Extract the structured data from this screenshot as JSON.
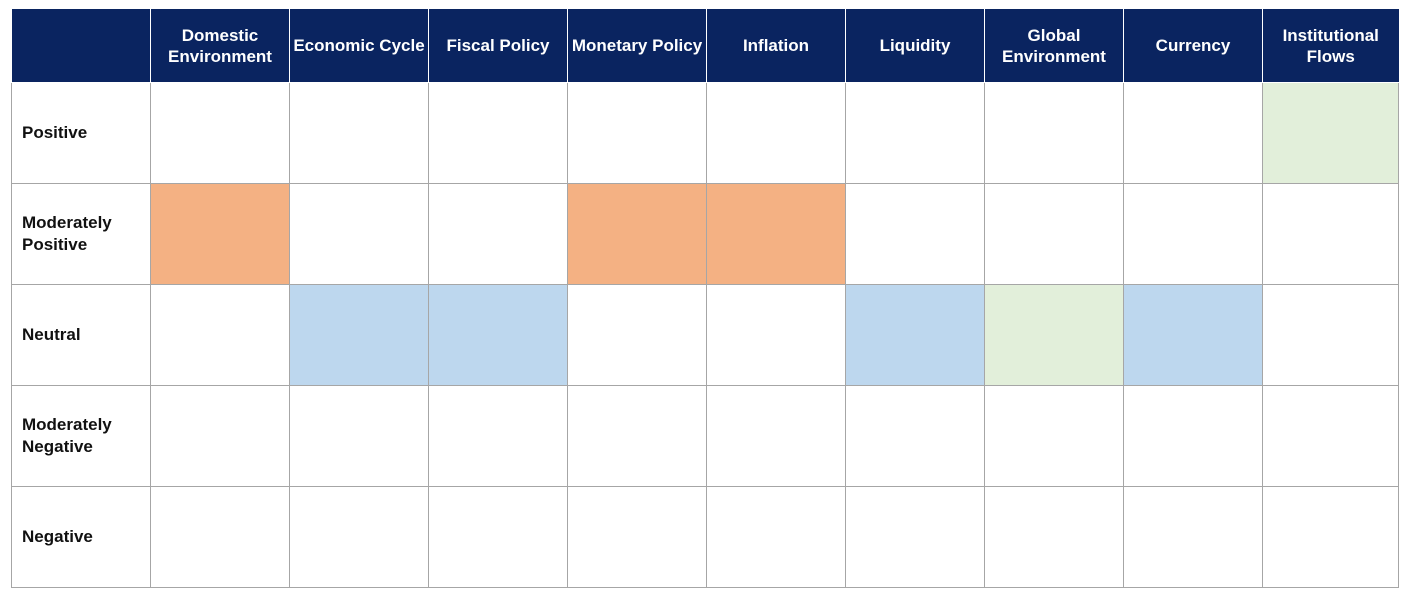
{
  "chart_data": {
    "type": "heatmap",
    "columns": [
      "Domestic Environment",
      "Economic Cycle",
      "Fiscal Policy",
      "Monetary Policy",
      "Inflation",
      "Liquidity",
      "Global Environment",
      "Currency",
      "Institutional Flows"
    ],
    "rows": [
      "Positive",
      "Moderately Positive",
      "Neutral",
      "Moderately Negative",
      "Negative"
    ],
    "assessments": [
      {
        "column": "Domestic Environment",
        "row": "Moderately Positive",
        "color": "#f4b183"
      },
      {
        "column": "Economic Cycle",
        "row": "Neutral",
        "color": "#bdd7ee"
      },
      {
        "column": "Fiscal Policy",
        "row": "Neutral",
        "color": "#bdd7ee"
      },
      {
        "column": "Monetary Policy",
        "row": "Moderately Positive",
        "color": "#f4b183"
      },
      {
        "column": "Inflation",
        "row": "Moderately Positive",
        "color": "#f4b183"
      },
      {
        "column": "Liquidity",
        "row": "Neutral",
        "color": "#bdd7ee"
      },
      {
        "column": "Global Environment",
        "row": "Neutral",
        "color": "#e2efda"
      },
      {
        "column": "Currency",
        "row": "Neutral",
        "color": "#bdd7ee"
      },
      {
        "column": "Institutional Flows",
        "row": "Positive",
        "color": "#e2efda"
      }
    ]
  },
  "colors": {
    "header_background": "#0a2460",
    "header_text": "#ffffff",
    "grid_line": "#a6a6a6",
    "orange": "#f4b183",
    "blue": "#bdd7ee",
    "green": "#e2efda"
  }
}
